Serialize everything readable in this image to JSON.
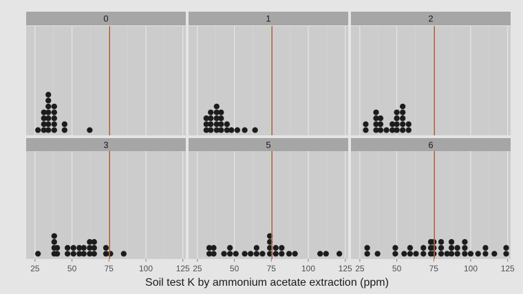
{
  "chart_data": {
    "type": "dotplot",
    "xlabel": "Soil test K by ammonium acetate extraction (ppm)",
    "ylabel": "",
    "xlim": [
      19,
      127
    ],
    "x_ticks": [
      25,
      50,
      75,
      100,
      125
    ],
    "grid": true,
    "reference_line_x": 75.5,
    "binwidth": 3.6,
    "panels": [
      {
        "label": "0",
        "bins": [
          [
            27,
            1
          ],
          [
            31,
            4
          ],
          [
            34,
            7
          ],
          [
            38,
            5
          ],
          [
            45,
            2
          ],
          [
            62,
            1
          ]
        ]
      },
      {
        "label": "1",
        "bins": [
          [
            31,
            3
          ],
          [
            34,
            4
          ],
          [
            38,
            5
          ],
          [
            41,
            4
          ],
          [
            45,
            2
          ],
          [
            48,
            1
          ],
          [
            52,
            1
          ],
          [
            57,
            1
          ],
          [
            64,
            1
          ]
        ]
      },
      {
        "label": "2",
        "bins": [
          [
            29,
            2
          ],
          [
            36,
            4
          ],
          [
            39,
            3
          ],
          [
            43,
            1
          ],
          [
            47,
            2
          ],
          [
            50,
            4
          ],
          [
            54,
            5
          ],
          [
            58,
            2
          ]
        ]
      },
      {
        "label": "3",
        "bins": [
          [
            27,
            1
          ],
          [
            38,
            4
          ],
          [
            40,
            2
          ],
          [
            47,
            2
          ],
          [
            51,
            2
          ],
          [
            55,
            2
          ],
          [
            58,
            2
          ],
          [
            62,
            3
          ],
          [
            65,
            3
          ],
          [
            73,
            2
          ],
          [
            76,
            1
          ],
          [
            85,
            1
          ]
        ]
      },
      {
        "label": "5",
        "bins": [
          [
            33,
            2
          ],
          [
            36,
            2
          ],
          [
            43,
            1
          ],
          [
            47,
            2
          ],
          [
            51,
            1
          ],
          [
            57,
            1
          ],
          [
            61,
            1
          ],
          [
            65,
            2
          ],
          [
            69,
            1
          ],
          [
            74,
            4
          ],
          [
            78,
            2
          ],
          [
            82,
            2
          ],
          [
            87,
            1
          ],
          [
            91,
            1
          ],
          [
            108,
            1
          ],
          [
            112,
            1
          ],
          [
            121,
            1
          ]
        ]
      },
      {
        "label": "6",
        "bins": [
          [
            30,
            2
          ],
          [
            37,
            1
          ],
          [
            49,
            2
          ],
          [
            55,
            1
          ],
          [
            59,
            2
          ],
          [
            63,
            1
          ],
          [
            68,
            2
          ],
          [
            73,
            3
          ],
          [
            75,
            3
          ],
          [
            80,
            3
          ],
          [
            84,
            1
          ],
          [
            87,
            3
          ],
          [
            91,
            2
          ],
          [
            96,
            3
          ],
          [
            100,
            1
          ],
          [
            105,
            1
          ],
          [
            110,
            2
          ],
          [
            116,
            1
          ],
          [
            124,
            2
          ]
        ]
      }
    ]
  }
}
